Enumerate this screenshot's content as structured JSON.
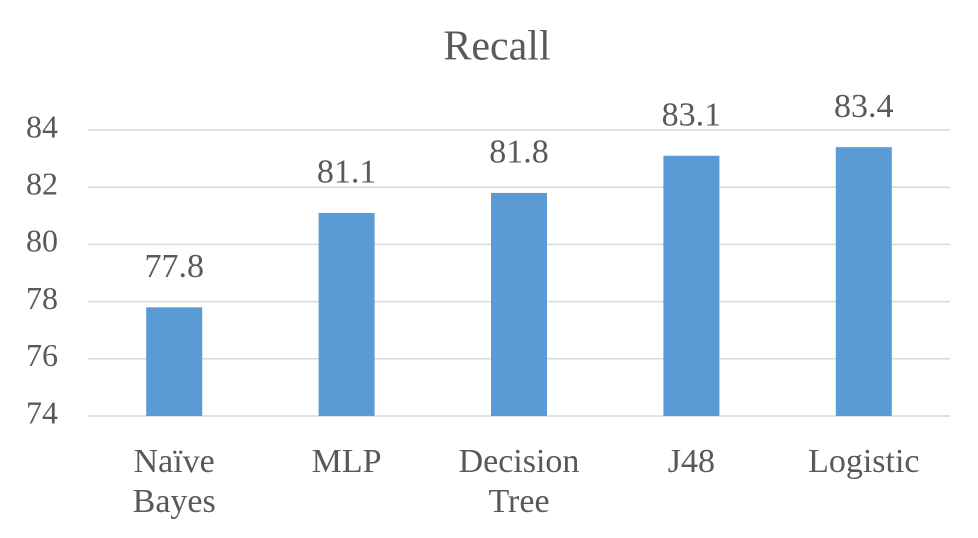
{
  "chart_data": {
    "type": "bar",
    "title": "Recall",
    "categories": [
      "Naïve Bayes",
      "MLP",
      "Decision Tree",
      "J48",
      "Logistic"
    ],
    "values": [
      77.8,
      81.1,
      81.8,
      83.1,
      83.4
    ],
    "color": "#5b9bd5",
    "ylim": [
      74,
      84
    ],
    "yticks": [
      74,
      76,
      78,
      80,
      82,
      84
    ],
    "grid": true
  }
}
